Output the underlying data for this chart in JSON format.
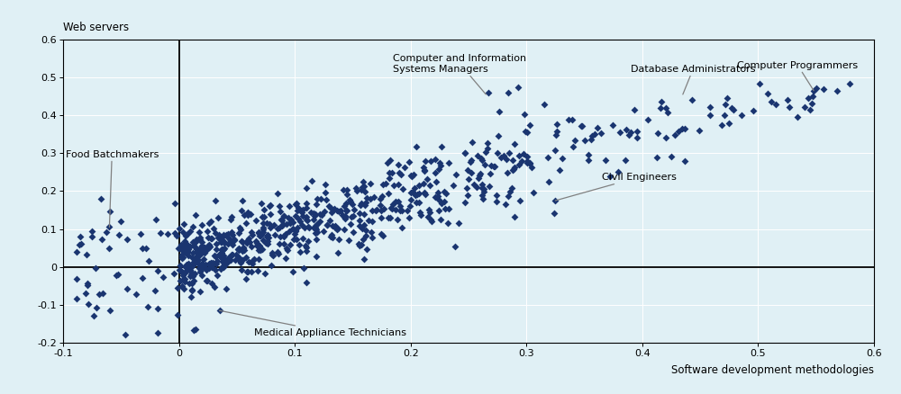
{
  "background_color": "#e0f0f5",
  "dot_color": "#1a3570",
  "marker": "D",
  "marker_size": 16,
  "xlim": [
    -0.1,
    0.6
  ],
  "ylim": [
    -0.2,
    0.6
  ],
  "xticks": [
    -0.1,
    0,
    0.1,
    0.2,
    0.3,
    0.4,
    0.5,
    0.6
  ],
  "yticks": [
    -0.2,
    -0.1,
    0,
    0.1,
    0.2,
    0.3,
    0.4,
    0.5,
    0.6
  ],
  "xlabel": "Software development methodologies",
  "ylabel": "Web servers",
  "xlabel_fontsize": 8.5,
  "ylabel_fontsize": 8.5,
  "tick_fontsize": 8,
  "annotation_fontsize": 8,
  "annotation_configs": [
    {
      "label": "Food Batchmakers",
      "point": [
        -0.06,
        0.105
      ],
      "text": [
        -0.098,
        0.285
      ],
      "ha": "left",
      "va": "bottom"
    },
    {
      "label": "Medical Appliance Technicians",
      "point": [
        0.035,
        -0.115
      ],
      "text": [
        0.065,
        -0.185
      ],
      "ha": "left",
      "va": "bottom"
    },
    {
      "label": "Computer and Information\nSystems Managers",
      "point": [
        0.265,
        0.455
      ],
      "text": [
        0.185,
        0.51
      ],
      "ha": "left",
      "va": "bottom"
    },
    {
      "label": "Database Administrators",
      "point": [
        0.435,
        0.455
      ],
      "text": [
        0.39,
        0.51
      ],
      "ha": "left",
      "va": "bottom"
    },
    {
      "label": "Computer Programmers",
      "point": [
        0.548,
        0.465
      ],
      "text": [
        0.482,
        0.52
      ],
      "ha": "left",
      "va": "bottom"
    },
    {
      "label": "Civil Engineers",
      "point": [
        0.325,
        0.175
      ],
      "text": [
        0.365,
        0.225
      ],
      "ha": "left",
      "va": "bottom"
    }
  ]
}
